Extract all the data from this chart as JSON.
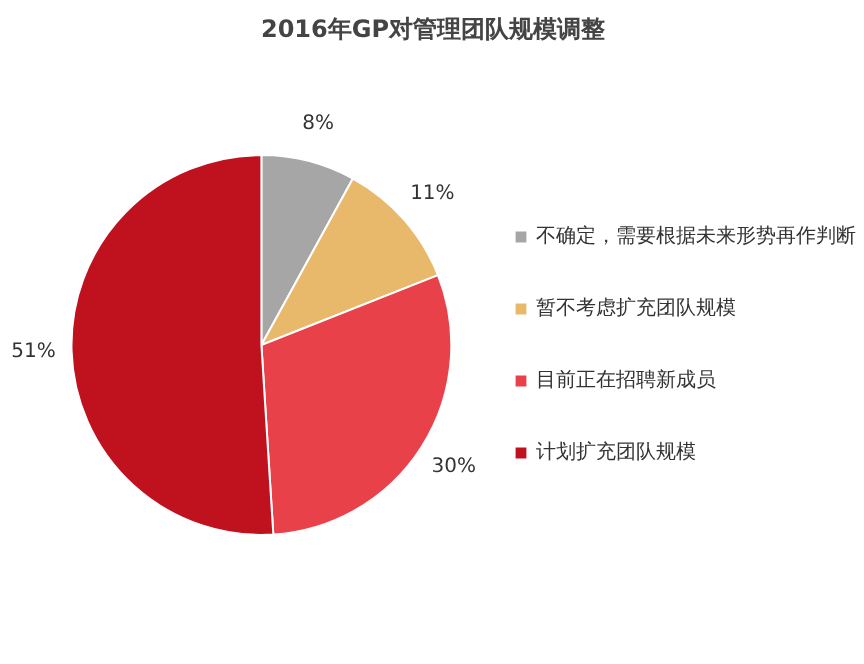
{
  "chart_data": {
    "type": "pie",
    "title": "2016年GP对管理团队规模调整",
    "categories": [
      "不确定，需要根据未来形势再作判断",
      "暂不考虑扩充团队规模",
      "目前正在招聘新成员",
      "计划扩充团队规模"
    ],
    "values": [
      8,
      11,
      30,
      51
    ],
    "colors": [
      "#a6a6a6",
      "#e8b96a",
      "#e8414a",
      "#c0111f"
    ],
    "value_labels": [
      "8%",
      "11%",
      "30%",
      "51%"
    ],
    "legend": "right"
  }
}
